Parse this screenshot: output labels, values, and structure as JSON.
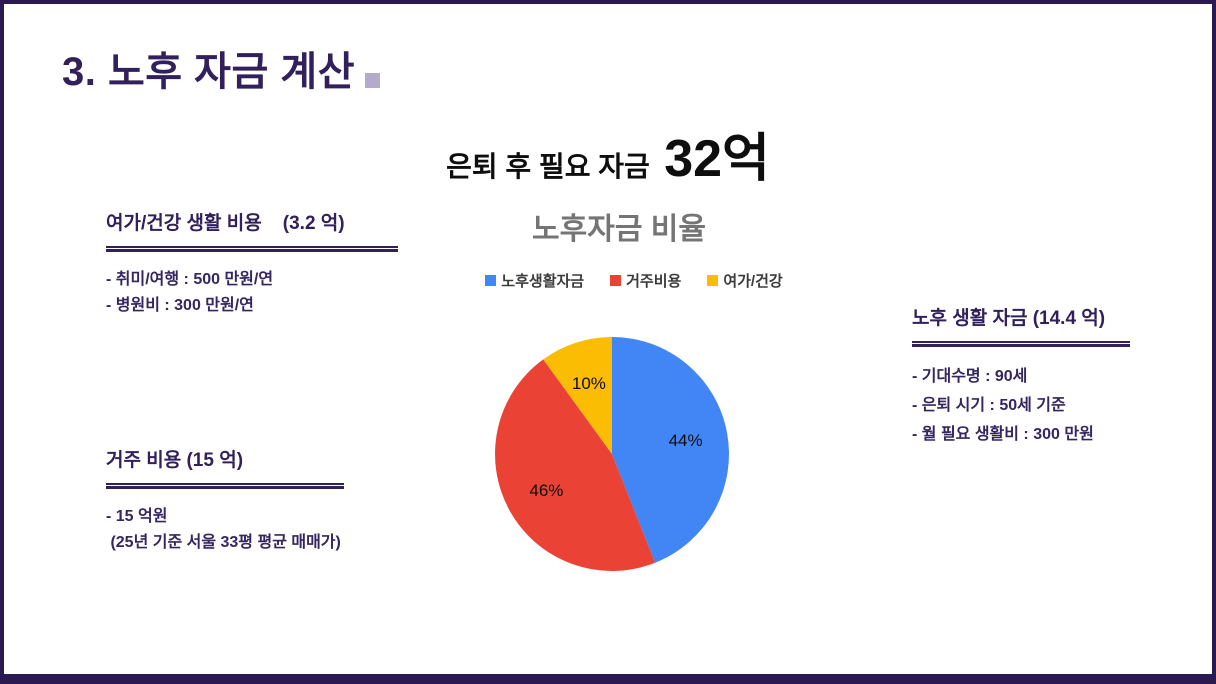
{
  "slide": {
    "title": "3. 노후 자금 계산",
    "subtitle_prefix": "은퇴 후 필요 자금",
    "subtitle_amount": "32억"
  },
  "chart_data": {
    "type": "pie",
    "title": "노후자금 비율",
    "labels": [
      "노후생활자금",
      "거주비용",
      "여가/건강"
    ],
    "values": [
      44,
      46,
      10
    ],
    "unit": "%",
    "data_labels": [
      "44%",
      "46%",
      "10%"
    ],
    "colors": [
      "#4285F4",
      "#EA4335",
      "#FBBC04"
    ],
    "legend_position": "top",
    "start_angle_deg": 0,
    "direction": "clockwise",
    "title_color": "#757575"
  },
  "blocks": {
    "leisure": {
      "heading": "여가/건강 생활 비용    (3.2 억)",
      "items": [
        "- 취미/여행 : 500 만원/연",
        "- 병원비 : 300 만원/연"
      ]
    },
    "housing": {
      "heading": "거주 비용 (15 억)",
      "items": [
        "- 15 억원",
        " (25년 기준 서울 33평 평균 매매가)"
      ]
    },
    "living": {
      "heading": "노후 생활 자금 (14.4 억)",
      "items": [
        "- 기대수명 : 90세",
        "- 은퇴 시기 : 50세 기준",
        "- 월 필요 생활비 : 300 만원"
      ]
    }
  },
  "colors": {
    "frame_border": "#2B1A52",
    "title_text": "#32205C",
    "accent_square": "#B4ABCB",
    "body_text": "#35265F",
    "subtitle_text": "#0E0E0E",
    "chart_title": "#757575"
  }
}
